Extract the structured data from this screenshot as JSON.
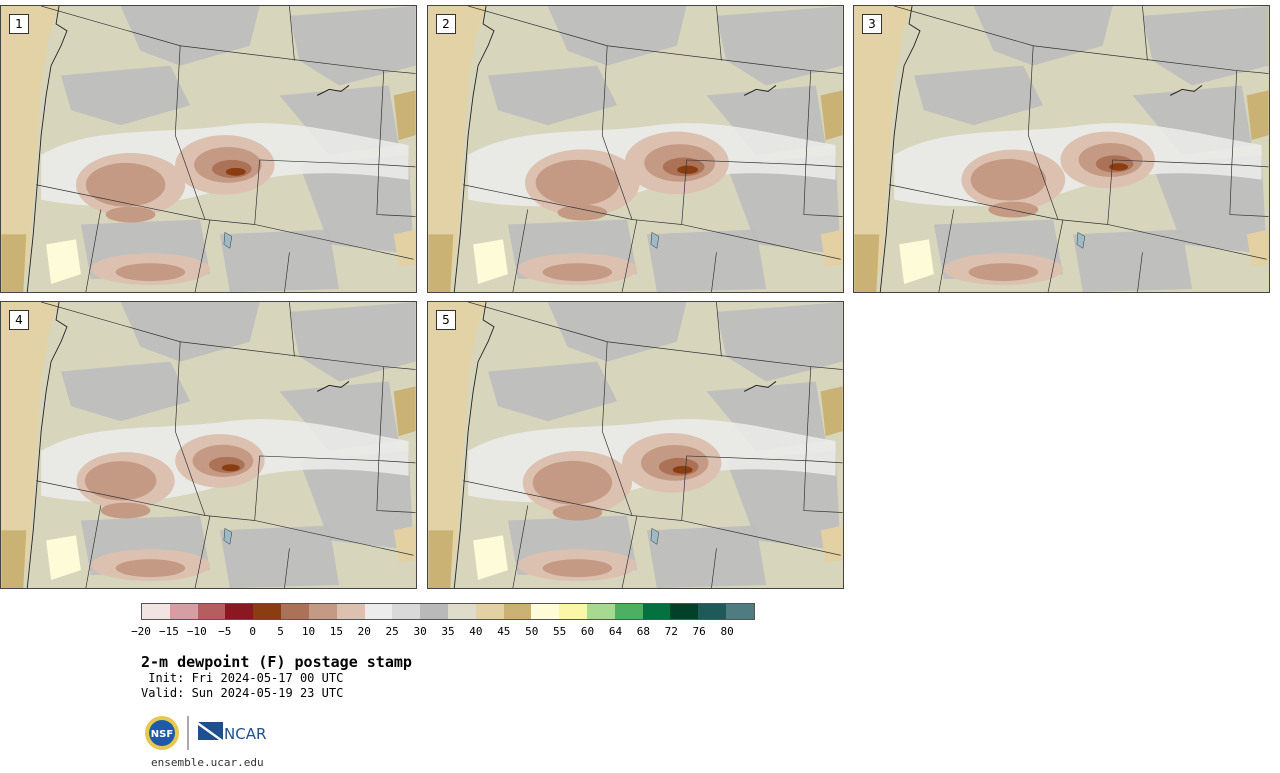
{
  "panels": [
    {
      "label": "1"
    },
    {
      "label": "2"
    },
    {
      "label": "3"
    },
    {
      "label": "4"
    },
    {
      "label": "5"
    }
  ],
  "colorbar": {
    "colors": [
      "#f2e4e2",
      "#d59ea2",
      "#b45e62",
      "#8a1823",
      "#8b3d12",
      "#ac7258",
      "#c49a84",
      "#dcc0b0",
      "#ececec",
      "#d9d9d9",
      "#b9b9b9",
      "#dfdccc",
      "#e3d0a3",
      "#c9b273",
      "#fefbd9",
      "#faf7a8",
      "#a7d98e",
      "#4daf62",
      "#067140",
      "#024129",
      "#1f5a5a",
      "#4e7c80"
    ],
    "ticks": [
      "−20",
      "−15",
      "−10",
      "−5",
      "0",
      "5",
      "10",
      "15",
      "20",
      "25",
      "30",
      "35",
      "40",
      "45",
      "50",
      "55",
      "60",
      "64",
      "68",
      "72",
      "76",
      "80"
    ]
  },
  "text": {
    "title": "2-m dewpoint (F) postage stamp",
    "init": " Init: Fri 2024-05-17 00 UTC",
    "valid": "Valid: Sun 2024-05-19 23 UTC",
    "nsf_logo": "NSF",
    "ncar_logo": "NCAR",
    "site": "ensemble.ucar.edu"
  }
}
